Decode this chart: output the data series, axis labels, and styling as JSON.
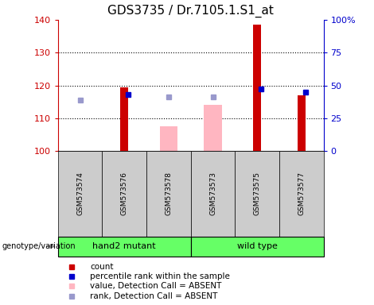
{
  "title": "GDS3735 / Dr.7105.1.S1_at",
  "samples": [
    "GSM573574",
    "GSM573576",
    "GSM573578",
    "GSM573573",
    "GSM573575",
    "GSM573577"
  ],
  "ylim_left": [
    100,
    140
  ],
  "yticks_left": [
    100,
    110,
    120,
    130,
    140
  ],
  "ylim_right": [
    0,
    100
  ],
  "yticks_right": [
    0,
    25,
    50,
    75,
    100
  ],
  "ytick_right_labels": [
    "0",
    "25",
    "50",
    "75",
    "100%"
  ],
  "bar_width": 0.18,
  "count_values": [
    100.3,
    119.5,
    100.3,
    100.3,
    138.5,
    117.0
  ],
  "count_color": "#CC0000",
  "absent_value_values": [
    null,
    null,
    107.5,
    114.0,
    null,
    null
  ],
  "absent_value_color": "#FFB6C1",
  "percentile_rank_values": [
    null,
    117.2,
    null,
    null,
    119.0,
    118.0
  ],
  "percentile_rank_color": "#0000CC",
  "absent_rank_values": [
    115.5,
    null,
    116.5,
    116.5,
    null,
    null
  ],
  "absent_rank_color": "#9999CC",
  "left_tick_color": "#CC0000",
  "right_tick_color": "#0000CC",
  "group_label_color": "#66FF66",
  "sample_box_color": "#CCCCCC",
  "legend_items": [
    {
      "label": "count",
      "color": "#CC0000"
    },
    {
      "label": "percentile rank within the sample",
      "color": "#0000CC"
    },
    {
      "label": "value, Detection Call = ABSENT",
      "color": "#FFB6C1"
    },
    {
      "label": "rank, Detection Call = ABSENT",
      "color": "#9999CC"
    }
  ]
}
